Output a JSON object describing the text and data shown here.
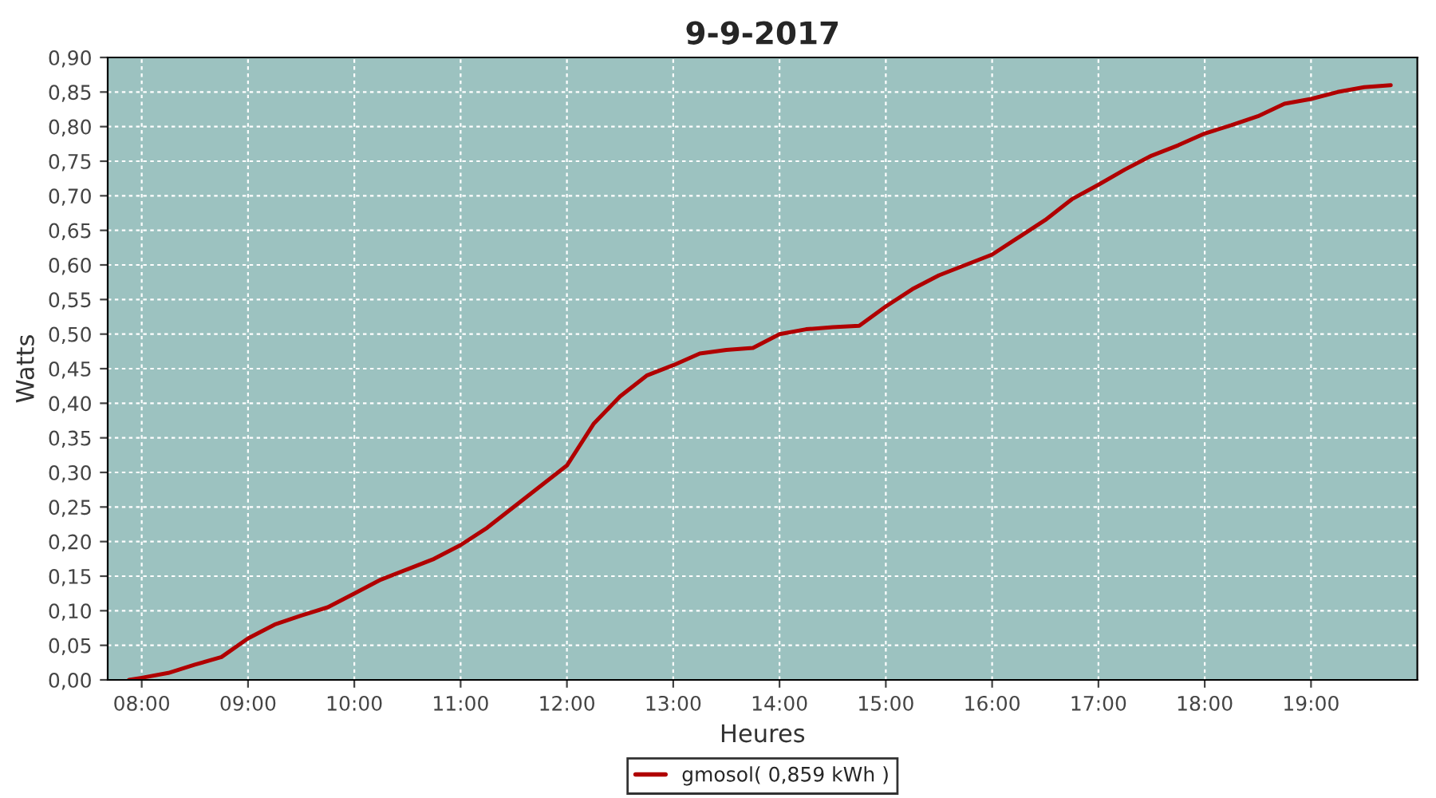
{
  "chart_data": {
    "type": "line",
    "title": "9-9-2017",
    "xlabel": "Heures",
    "ylabel": "Watts",
    "series": [
      {
        "name": "gmosol( 0,859 kWh )",
        "color": "#b00000",
        "x": [
          7.88,
          8.0,
          8.25,
          8.5,
          8.75,
          9.0,
          9.25,
          9.5,
          9.75,
          10.0,
          10.25,
          10.5,
          10.75,
          11.0,
          11.25,
          11.5,
          11.75,
          12.0,
          12.25,
          12.5,
          12.75,
          13.0,
          13.25,
          13.5,
          13.75,
          14.0,
          14.25,
          14.5,
          14.75,
          15.0,
          15.25,
          15.5,
          15.75,
          16.0,
          16.25,
          16.5,
          16.75,
          17.0,
          17.25,
          17.5,
          17.75,
          18.0,
          18.25,
          18.5,
          18.75,
          19.0,
          19.25,
          19.5,
          19.75
        ],
        "values": [
          0.0,
          0.003,
          0.01,
          0.022,
          0.033,
          0.06,
          0.08,
          0.093,
          0.105,
          0.125,
          0.145,
          0.16,
          0.175,
          0.195,
          0.22,
          0.25,
          0.28,
          0.31,
          0.37,
          0.41,
          0.44,
          0.455,
          0.472,
          0.477,
          0.48,
          0.5,
          0.507,
          0.51,
          0.512,
          0.54,
          0.565,
          0.585,
          0.6,
          0.615,
          0.64,
          0.665,
          0.695,
          0.716,
          0.738,
          0.758,
          0.773,
          0.79,
          0.802,
          0.815,
          0.833,
          0.84,
          0.85,
          0.857,
          0.86
        ]
      }
    ],
    "xlim": [
      7.68,
      20.0
    ],
    "xticks": [
      {
        "value": 8,
        "label": "08:00"
      },
      {
        "value": 9,
        "label": "09:00"
      },
      {
        "value": 10,
        "label": "10:00"
      },
      {
        "value": 11,
        "label": "11:00"
      },
      {
        "value": 12,
        "label": "12:00"
      },
      {
        "value": 13,
        "label": "13:00"
      },
      {
        "value": 14,
        "label": "14:00"
      },
      {
        "value": 15,
        "label": "15:00"
      },
      {
        "value": 16,
        "label": "16:00"
      },
      {
        "value": 17,
        "label": "17:00"
      },
      {
        "value": 18,
        "label": "18:00"
      },
      {
        "value": 19,
        "label": "19:00"
      }
    ],
    "ylim": [
      0,
      0.9
    ],
    "yticks": [
      {
        "value": 0,
        "label": "0,00"
      },
      {
        "value": 0.05,
        "label": "0,05"
      },
      {
        "value": 0.1,
        "label": "0,10"
      },
      {
        "value": 0.15,
        "label": "0,15"
      },
      {
        "value": 0.2,
        "label": "0,20"
      },
      {
        "value": 0.25,
        "label": "0,25"
      },
      {
        "value": 0.3,
        "label": "0,30"
      },
      {
        "value": 0.35,
        "label": "0,35"
      },
      {
        "value": 0.4,
        "label": "0,40"
      },
      {
        "value": 0.45,
        "label": "0,45"
      },
      {
        "value": 0.5,
        "label": "0,50"
      },
      {
        "value": 0.55,
        "label": "0,55"
      },
      {
        "value": 0.6,
        "label": "0,60"
      },
      {
        "value": 0.65,
        "label": "0,65"
      },
      {
        "value": 0.7,
        "label": "0,70"
      },
      {
        "value": 0.75,
        "label": "0,75"
      },
      {
        "value": 0.8,
        "label": "0,80"
      },
      {
        "value": 0.85,
        "label": "0,85"
      },
      {
        "value": 0.9,
        "label": "0,90"
      }
    ],
    "grid": true,
    "legend": "bottom",
    "line_style": "solid"
  }
}
